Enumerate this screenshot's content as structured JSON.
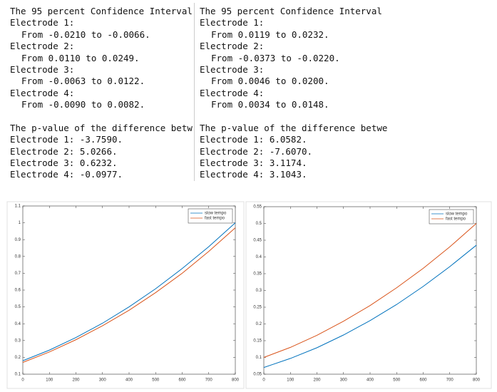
{
  "consoles": [
    {
      "ci_heading": "The 95 percent Confidence Interval",
      "electrodes": [
        {
          "label": "Electrode 1:",
          "interval": "From -0.0210 to -0.0066."
        },
        {
          "label": "Electrode 2:",
          "interval": "From 0.0110 to 0.0249."
        },
        {
          "label": "Electrode 3:",
          "interval": "From -0.0063 to 0.0122."
        },
        {
          "label": "Electrode 4:",
          "interval": "From -0.0090 to 0.0082."
        }
      ],
      "p_heading": "The p-value of the difference betwe",
      "p_values": [
        "Electrode 1: -3.7590.",
        "Electrode 2: 5.0266.",
        "Electrode 3: 0.6232.",
        "Electrode 4: -0.0977."
      ]
    },
    {
      "ci_heading": "The 95 percent Confidence Interval",
      "electrodes": [
        {
          "label": "Electrode 1:",
          "interval": "From 0.0119 to 0.0232."
        },
        {
          "label": "Electrode 2:",
          "interval": "From -0.0373 to -0.0220."
        },
        {
          "label": "Electrode 3:",
          "interval": "From 0.0046 to 0.0200."
        },
        {
          "label": "Electrode 4:",
          "interval": "From 0.0034 to 0.0148."
        }
      ],
      "p_heading": "The p-value of the difference betwe",
      "p_values": [
        "Electrode 1: 6.0582.",
        "Electrode 2: -7.6070.",
        "Electrode 3: 3.1174.",
        "Electrode 4: 3.1043."
      ]
    }
  ],
  "chart_data": [
    {
      "type": "line",
      "x": [
        0,
        100,
        200,
        300,
        400,
        500,
        600,
        700,
        800
      ],
      "series": [
        {
          "name": "slow tempo",
          "color": "#0072bd",
          "values": [
            0.18,
            0.243,
            0.318,
            0.403,
            0.5,
            0.608,
            0.728,
            0.858,
            1.0
          ]
        },
        {
          "name": "fast tempo",
          "color": "#d95319",
          "values": [
            0.17,
            0.232,
            0.305,
            0.388,
            0.48,
            0.585,
            0.7,
            0.83,
            0.97
          ]
        }
      ],
      "xlim": [
        0,
        800
      ],
      "xticks": [
        0,
        100,
        200,
        300,
        400,
        500,
        600,
        700,
        800
      ],
      "ylim": [
        0.1,
        1.1
      ],
      "yticks": [
        0.1,
        0.2,
        0.3,
        0.4,
        0.5,
        0.6,
        0.7,
        0.8,
        0.9,
        1,
        1.1
      ],
      "legend": "upper-right"
    },
    {
      "type": "line",
      "x": [
        0,
        100,
        200,
        300,
        400,
        500,
        600,
        700,
        800
      ],
      "series": [
        {
          "name": "slow tempo",
          "color": "#0072bd",
          "values": [
            0.07,
            0.097,
            0.129,
            0.167,
            0.21,
            0.258,
            0.312,
            0.371,
            0.435
          ]
        },
        {
          "name": "fast tempo",
          "color": "#d95319",
          "values": [
            0.1,
            0.13,
            0.166,
            0.208,
            0.255,
            0.308,
            0.366,
            0.43,
            0.5
          ]
        }
      ],
      "xlim": [
        0,
        800
      ],
      "xticks": [
        0,
        100,
        200,
        300,
        400,
        500,
        600,
        700,
        800
      ],
      "ylim": [
        0.05,
        0.55
      ],
      "yticks": [
        0.05,
        0.1,
        0.15,
        0.2,
        0.25,
        0.3,
        0.35,
        0.4,
        0.45,
        0.5,
        0.55
      ],
      "legend": "upper-right"
    }
  ]
}
